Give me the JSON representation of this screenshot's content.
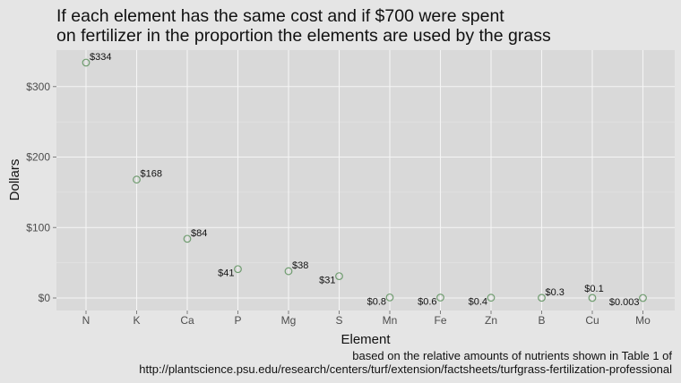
{
  "chart_data": {
    "type": "scatter",
    "title": "If each element has the same cost and if $700 were spent on fertilizer in the proportion the elements are used by the grass",
    "title_lines": [
      "If each element has the same cost and if $700 were spent",
      "on fertilizer in the proportion the elements are used by the grass"
    ],
    "xlabel": "Element",
    "ylabel": "Dollars",
    "categories": [
      "N",
      "K",
      "Ca",
      "P",
      "Mg",
      "S",
      "Mn",
      "Fe",
      "Zn",
      "B",
      "Cu",
      "Mo"
    ],
    "values": [
      334,
      168,
      84,
      41,
      38,
      31,
      0.8,
      0.6,
      0.4,
      0.3,
      0.1,
      0.003
    ],
    "data_labels": [
      "$334",
      "$168",
      "$84",
      "$41",
      "$38",
      "$31",
      "$0.8",
      "$0.6",
      "$0.4",
      "$0.3",
      "$0.1",
      "$0.003"
    ],
    "label_sides": [
      "right",
      "right",
      "right",
      "left",
      "right",
      "left",
      "left",
      "left",
      "left",
      "right",
      "above",
      "left"
    ],
    "y_ticks": [
      0,
      100,
      200,
      300
    ],
    "y_tick_labels": [
      "$0",
      "$100",
      "$200",
      "$300"
    ],
    "ylim": [
      -15,
      350
    ],
    "grid": true,
    "marker_color": "#6f9c6f",
    "panel_color": "#d9d9d9",
    "caption_lines": [
      "based on the relative amounts of nutrients shown in Table 1 of",
      "http://plantscience.psu.edu/research/centers/turf/extension/factsheets/turfgrass-fertilization-professional"
    ]
  }
}
